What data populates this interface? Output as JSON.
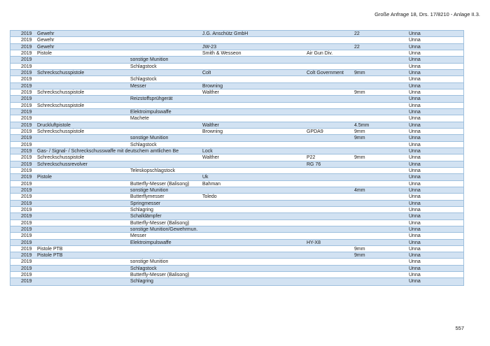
{
  "header": {
    "title": "Große Anfrage 18, Drs. 17/8210 - Anlage II.3."
  },
  "footer": {
    "page_number": "557"
  },
  "colors": {
    "row_highlight": "#d2e2f2",
    "row_alternate": "#ffffff",
    "table_border": "#9dbfdd",
    "text": "#1a1a1a"
  },
  "table": {
    "rows": [
      [
        "2019",
        "Gewehr",
        "",
        "J.G. Anschütz GmbH",
        "",
        "22",
        "Unna"
      ],
      [
        "2019",
        "Gewehr",
        "",
        "",
        "",
        "",
        "Unna"
      ],
      [
        "2019",
        "Gewehr",
        "",
        "JW-23",
        "",
        "22",
        "Unna"
      ],
      [
        "2019",
        "Pistole",
        "",
        "Smith & Wesseon",
        "Air Gun Div.",
        "",
        "Unna"
      ],
      [
        "2019",
        "",
        "sonstige Munition",
        "",
        "",
        "",
        "Unna"
      ],
      [
        "2019",
        "",
        "Schlagstock",
        "",
        "",
        "",
        "Unna"
      ],
      [
        "2019",
        "Schreckschusspistole",
        "",
        "Colt",
        "Colt Government",
        "9mm",
        "Unna"
      ],
      [
        "2019",
        "",
        "Schlagstock",
        "",
        "",
        "",
        "Unna"
      ],
      [
        "2019",
        "",
        "Messer",
        "Browning",
        "",
        "",
        "Unna"
      ],
      [
        "2019",
        "Schreckschusspistole",
        "",
        "Walther",
        "",
        "9mm",
        "Unna"
      ],
      [
        "2019",
        "",
        "Reizstoffsprühgerät",
        "",
        "",
        "",
        "Unna"
      ],
      [
        "2019",
        "Schreckschusspistole",
        "",
        "",
        "",
        "",
        "Unna"
      ],
      [
        "2019",
        "",
        "Elektroimpulswaffe",
        "",
        "",
        "",
        "Unna"
      ],
      [
        "2019",
        "",
        "Machete",
        "",
        "",
        "",
        "Unna"
      ],
      [
        "2019",
        "Druckluftpistole",
        "",
        "Walther",
        "",
        "4.5mm",
        "Unna"
      ],
      [
        "2019",
        "Schreckschusspistole",
        "",
        "Browning",
        "GPDA9",
        "9mm",
        "Unna"
      ],
      [
        "2019",
        "",
        "sonstige Munition",
        "",
        "",
        "9mm",
        "Unna"
      ],
      [
        "2019",
        "",
        "Schlagstock",
        "",
        "",
        "",
        "Unna"
      ],
      [
        "2019",
        "Gas- / Signal- / Schreckschusswaffe mit deutschem amtlichen Be",
        "",
        "Lock",
        "",
        "",
        "Unna"
      ],
      [
        "2019",
        "Schreckschusspistole",
        "",
        "Walther",
        "P22",
        "9mm",
        "Unna"
      ],
      [
        "2019",
        "Schreckschussrevolver",
        "",
        "",
        "RG 76",
        "",
        "Unna"
      ],
      [
        "2019",
        "",
        "Teleskopschlagstock",
        "",
        "",
        "",
        "Unna"
      ],
      [
        "2019",
        "Pistole",
        "",
        "Uk",
        "",
        "",
        "Unna"
      ],
      [
        "2019",
        "",
        "Butterfly-Messer (Balisong)",
        "Bahman",
        "",
        "",
        "Unna"
      ],
      [
        "2019",
        "",
        "sonstige Munition",
        "",
        "",
        "4mm",
        "Unna"
      ],
      [
        "2019",
        "",
        "Butterflymesser",
        "Toledo",
        "",
        "",
        "Unna"
      ],
      [
        "2019",
        "",
        "Springmesser",
        "",
        "",
        "",
        "Unna"
      ],
      [
        "2019",
        "",
        "Schlagring",
        "",
        "",
        "",
        "Unna"
      ],
      [
        "2019",
        "",
        "Schalldämpfer",
        "",
        "",
        "",
        "Unna"
      ],
      [
        "2019",
        "",
        "Butterfly-Messer (Balisong)",
        "",
        "",
        "",
        "Unna"
      ],
      [
        "2019",
        "",
        "sonstige Munition/Gewehrmun.",
        "",
        "",
        "",
        "Unna"
      ],
      [
        "2019",
        "",
        "Messer",
        "",
        "",
        "",
        "Unna"
      ],
      [
        "2019",
        "",
        "Elektroimpulswaffe",
        "",
        "HY-X8",
        "",
        "Unna"
      ],
      [
        "2019",
        "Pistole PTB",
        "",
        "",
        "",
        "9mm",
        "Unna"
      ],
      [
        "2019",
        "Pistole PTB",
        "",
        "",
        "",
        "9mm",
        "Unna"
      ],
      [
        "2019",
        "",
        "sonstige Munition",
        "",
        "",
        "",
        "Unna"
      ],
      [
        "2019",
        "",
        "Schlagstock",
        "",
        "",
        "",
        "Unna"
      ],
      [
        "2019",
        "",
        "Butterfly-Messer (Balisong)",
        "",
        "",
        "",
        "Unna"
      ],
      [
        "2019",
        "",
        "Schlagring",
        "",
        "",
        "",
        "Unna"
      ]
    ]
  }
}
